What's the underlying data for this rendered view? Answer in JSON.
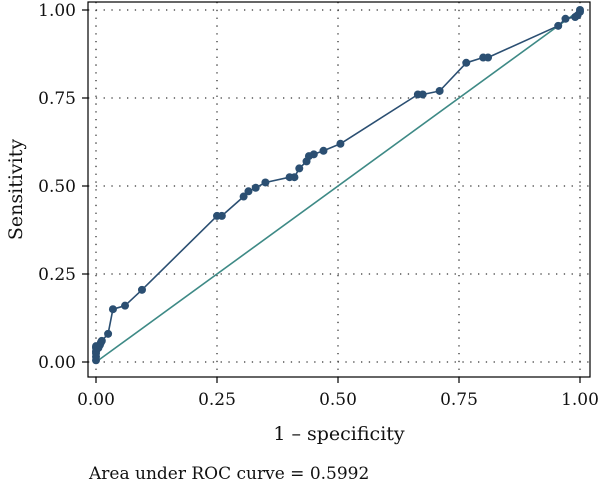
{
  "chart_data": {
    "type": "line",
    "xlabel": "1 – specificity",
    "ylabel": "Sensitivity",
    "caption": "Area under ROC curve = 0.5992",
    "xlim": [
      0,
      1
    ],
    "ylim": [
      0,
      1
    ],
    "x_ticks": [
      0,
      0.25,
      0.5,
      0.75,
      1
    ],
    "y_ticks": [
      0,
      0.25,
      0.5,
      0.75,
      1
    ],
    "x_tick_labels": [
      "0.00",
      "0.25",
      "0.50",
      "0.75",
      "1.00"
    ],
    "y_tick_labels": [
      "0.00",
      "0.25",
      "0.50",
      "0.75",
      "1.00"
    ],
    "grid": "dotted",
    "legend": "none",
    "colors": {
      "roc": "#2b4f72",
      "reference": "#3e8a86",
      "grid": "#333333",
      "frame": "#000000"
    },
    "series": [
      {
        "style": "line-with-markers",
        "x": [
          0.0,
          0.0,
          0.0,
          0.0,
          0.0,
          0.0,
          0.005,
          0.008,
          0.01,
          0.012,
          0.025,
          0.035,
          0.06,
          0.095,
          0.25,
          0.26,
          0.305,
          0.315,
          0.33,
          0.35,
          0.4,
          0.41,
          0.42,
          0.435,
          0.44,
          0.45,
          0.47,
          0.505,
          0.665,
          0.675,
          0.71,
          0.765,
          0.8,
          0.81,
          0.955,
          0.97,
          0.99,
          0.995,
          1.0,
          1.0
        ],
        "y": [
          0.005,
          0.015,
          0.025,
          0.03,
          0.04,
          0.045,
          0.04,
          0.048,
          0.055,
          0.06,
          0.08,
          0.15,
          0.16,
          0.205,
          0.415,
          0.415,
          0.47,
          0.485,
          0.495,
          0.51,
          0.525,
          0.525,
          0.55,
          0.57,
          0.585,
          0.59,
          0.6,
          0.62,
          0.76,
          0.76,
          0.77,
          0.85,
          0.865,
          0.865,
          0.955,
          0.975,
          0.98,
          0.985,
          0.995,
          1.0
        ]
      },
      {
        "style": "reference-line",
        "x": [
          0,
          1
        ],
        "y": [
          0,
          1
        ]
      }
    ]
  }
}
